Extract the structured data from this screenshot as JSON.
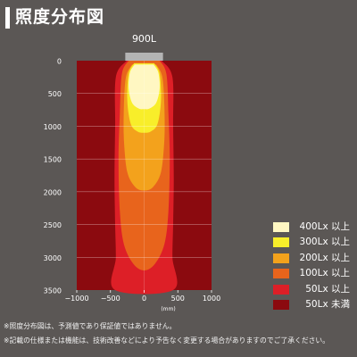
{
  "page": {
    "title": "照度分布図"
  },
  "chart_data": {
    "type": "heatmap",
    "title": "900L",
    "xlabel": "(mm)",
    "xlim": [
      -1000,
      1000
    ],
    "ylim": [
      0,
      3500
    ],
    "x_ticks": [
      -1000,
      -500,
      0,
      500,
      1000
    ],
    "y_ticks": [
      0,
      500,
      1000,
      1500,
      2000,
      2500,
      3000,
      3500
    ],
    "plot_range_x": [
      -500,
      500
    ],
    "levels": [
      {
        "label": "400Lx 以上",
        "min": 400,
        "color": "#fff7c2"
      },
      {
        "label": "300Lx 以上",
        "min": 300,
        "color": "#f8ee2a"
      },
      {
        "label": "200Lx 以上",
        "min": 200,
        "color": "#f3a21c"
      },
      {
        "label": "100Lx 以上",
        "min": 100,
        "color": "#e8641c"
      },
      {
        "label": "50Lx 以上",
        "min": 50,
        "color": "#dd1f27"
      },
      {
        "label": "50Lx 未満",
        "max": 50,
        "color": "#8b0a0f"
      }
    ],
    "contours": [
      {
        "level": "50Lx 以上",
        "points": [
          [
            -260,
            0
          ],
          [
            -420,
            250
          ],
          [
            -430,
            1000
          ],
          [
            -440,
            1800
          ],
          [
            -430,
            2500
          ],
          [
            -420,
            3000
          ],
          [
            -430,
            3500
          ],
          [
            430,
            3500
          ],
          [
            420,
            3000
          ],
          [
            430,
            2500
          ],
          [
            440,
            1800
          ],
          [
            430,
            1000
          ],
          [
            420,
            250
          ],
          [
            260,
            0
          ]
        ]
      },
      {
        "level": "100Lx 以上",
        "points": [
          [
            -230,
            0
          ],
          [
            -330,
            200
          ],
          [
            -360,
            800
          ],
          [
            -380,
            1500
          ],
          [
            -360,
            2300
          ],
          [
            -300,
            2800
          ],
          [
            -160,
            3100
          ],
          [
            0,
            3200
          ],
          [
            160,
            3100
          ],
          [
            300,
            2800
          ],
          [
            360,
            2300
          ],
          [
            380,
            1500
          ],
          [
            360,
            800
          ],
          [
            330,
            200
          ],
          [
            230,
            0
          ]
        ]
      },
      {
        "level": "200Lx 以上",
        "points": [
          [
            -180,
            60
          ],
          [
            -270,
            250
          ],
          [
            -300,
            700
          ],
          [
            -300,
            1200
          ],
          [
            -250,
            1700
          ],
          [
            -130,
            1930
          ],
          [
            0,
            1980
          ],
          [
            130,
            1930
          ],
          [
            250,
            1700
          ],
          [
            300,
            1200
          ],
          [
            300,
            700
          ],
          [
            270,
            250
          ],
          [
            180,
            60
          ]
        ]
      },
      {
        "level": "300Lx 以上",
        "points": [
          [
            -150,
            40
          ],
          [
            -230,
            200
          ],
          [
            -250,
            600
          ],
          [
            -200,
            960
          ],
          [
            -100,
            1080
          ],
          [
            0,
            1100
          ],
          [
            100,
            1080
          ],
          [
            200,
            960
          ],
          [
            250,
            600
          ],
          [
            230,
            200
          ],
          [
            150,
            40
          ]
        ]
      },
      {
        "level": "400Lx 以上",
        "points": [
          [
            -140,
            60
          ],
          [
            -210,
            180
          ],
          [
            -230,
            420
          ],
          [
            -180,
            640
          ],
          [
            -80,
            730
          ],
          [
            0,
            740
          ],
          [
            80,
            730
          ],
          [
            180,
            640
          ],
          [
            230,
            420
          ],
          [
            210,
            180
          ],
          [
            140,
            60
          ]
        ]
      }
    ],
    "source_label": "900L"
  },
  "footnotes": [
    "※照度分布図は、予測値であり保証値ではありません。",
    "※記載の仕様または機能は、技術改善などにより予告なく変更する場合がありますのでご了承ください。"
  ]
}
